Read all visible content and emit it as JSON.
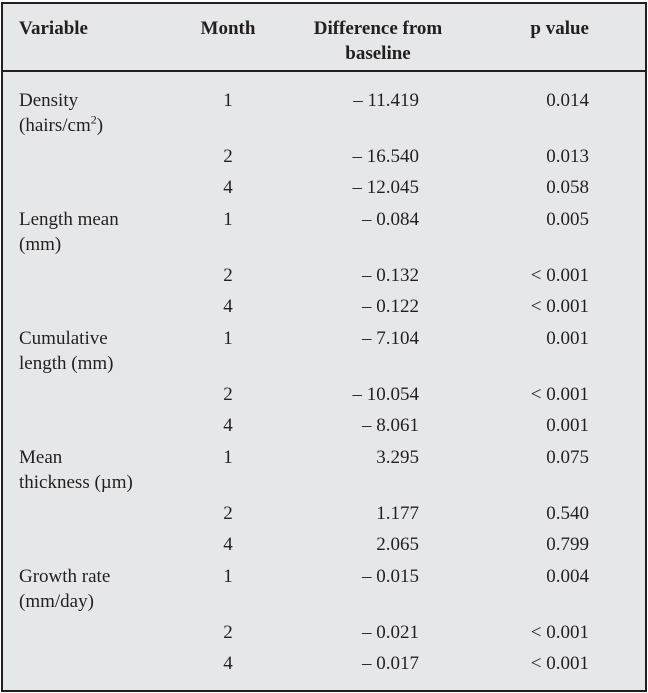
{
  "header": {
    "variable": "Variable",
    "month": "Month",
    "difference_line1": "Difference from",
    "difference_line2": "baseline",
    "p_value": "p value"
  },
  "groups": [
    {
      "variable_line1": "Density",
      "variable_line2": "(hairs/cm",
      "variable_sup": "2",
      "variable_after_sup": ")",
      "rows": [
        {
          "month": "1",
          "difference": "– 11.419",
          "p": "0.014"
        },
        {
          "month": "2",
          "difference": "– 16.540",
          "p": "0.013"
        },
        {
          "month": "4",
          "difference": "– 12.045",
          "p": "0.058"
        }
      ]
    },
    {
      "variable_line1": "Length mean",
      "variable_line2": "(mm)",
      "rows": [
        {
          "month": "1",
          "difference": "– 0.084",
          "p": "0.005"
        },
        {
          "month": "2",
          "difference": "– 0.132",
          "p": "< 0.001"
        },
        {
          "month": "4",
          "difference": "– 0.122",
          "p": "< 0.001"
        }
      ]
    },
    {
      "variable_line1": "Cumulative",
      "variable_line2": "length (mm)",
      "rows": [
        {
          "month": "1",
          "difference": "– 7.104",
          "p": "0.001"
        },
        {
          "month": "2",
          "difference": "– 10.054",
          "p": "< 0.001"
        },
        {
          "month": "4",
          "difference": "– 8.061",
          "p": "0.001"
        }
      ]
    },
    {
      "variable_line1": "Mean",
      "variable_line2": "thickness (µm)",
      "rows": [
        {
          "month": "1",
          "difference": "3.295",
          "p": "0.075"
        },
        {
          "month": "2",
          "difference": "1.177",
          "p": "0.540"
        },
        {
          "month": "4",
          "difference": "2.065",
          "p": "0.799"
        }
      ]
    },
    {
      "variable_line1": "Growth rate",
      "variable_line2": "(mm/day)",
      "rows": [
        {
          "month": "1",
          "difference": "– 0.015",
          "p": "0.004"
        },
        {
          "month": "2",
          "difference": "– 0.021",
          "p": "< 0.001"
        },
        {
          "month": "4",
          "difference": "– 0.017",
          "p": "< 0.001"
        }
      ]
    }
  ]
}
